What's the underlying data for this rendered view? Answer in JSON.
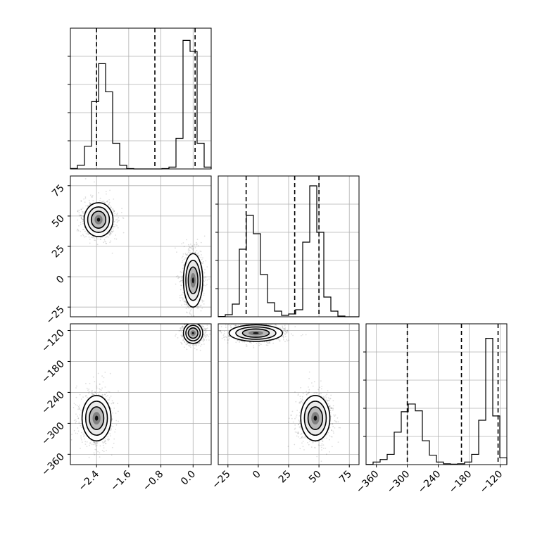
{
  "chart_data": {
    "type": "corner",
    "title": "",
    "n_params": 3,
    "params": [
      {
        "label": "",
        "range": [
          -3.05,
          0.45
        ],
        "ticks": [
          -2.4,
          -1.6,
          -0.8,
          0.0
        ],
        "tick_labels": [
          "−2.4",
          "−1.6",
          "−0.8",
          "0.0"
        ],
        "quantiles": [
          -2.4,
          -0.95,
          0.05
        ]
      },
      {
        "label": "",
        "range": [
          -33,
          83
        ],
        "ticks": [
          -25,
          0,
          25,
          50,
          75
        ],
        "tick_labels": [
          "−25",
          "0",
          "25",
          "50",
          "75"
        ],
        "quantiles": [
          -10,
          30,
          50
        ]
      },
      {
        "label": "",
        "range": [
          -380,
          -107
        ],
        "ticks": [
          -360,
          -300,
          -240,
          -180,
          -120
        ],
        "tick_labels": [
          "−360",
          "−300",
          "−240",
          "−180",
          "−120"
        ],
        "quantiles": [
          -300,
          -195,
          -124
        ]
      }
    ],
    "histograms": [
      {
        "param": 0,
        "bin_edges": [
          -3.05,
          -2.875,
          -2.7,
          -2.525,
          -2.35,
          -2.175,
          -2.0,
          -1.825,
          -1.65,
          -1.475,
          -1.3,
          -1.125,
          -0.95,
          -0.775,
          -0.6,
          -0.425,
          -0.25,
          -0.075,
          0.1,
          0.275,
          0.45
        ],
        "counts": [
          0.4,
          3.0,
          18.5,
          55.0,
          86.0,
          63.0,
          21.0,
          3.0,
          0.3,
          0,
          0,
          0,
          0,
          0.3,
          1.5,
          25.0,
          105.0,
          96.0,
          21.0,
          1.5
        ],
        "ylim": [
          0,
          115
        ]
      },
      {
        "param": 1,
        "bin_edges": [
          -33,
          -27.2,
          -21.4,
          -15.6,
          -9.8,
          -4.0,
          1.8,
          7.6,
          13.4,
          19.2,
          25.0,
          30.8,
          36.6,
          42.4,
          48.2,
          54.0,
          59.8,
          65.6,
          71.4,
          77.2,
          83.0
        ],
        "counts": [
          0.2,
          1.5,
          9.0,
          48.0,
          72.0,
          59.0,
          30.0,
          10.0,
          4.0,
          1.0,
          2.0,
          5.0,
          53.0,
          93.0,
          60.0,
          14.0,
          4.0,
          0.5,
          0,
          0
        ],
        "ylim": [
          0,
          100
        ]
      },
      {
        "param": 2,
        "bin_edges": [
          -380,
          -366.35,
          -352.7,
          -339.05,
          -325.4,
          -311.75,
          -298.1,
          -284.45,
          -270.8,
          -257.15,
          -243.5,
          -229.85,
          -216.2,
          -202.55,
          -188.9,
          -175.25,
          -161.6,
          -147.95,
          -134.3,
          -120.65,
          -107
        ],
        "counts": [
          0.2,
          3.0,
          6.0,
          12.0,
          38.0,
          62.0,
          71.0,
          63.0,
          28.0,
          11.0,
          3.0,
          1.0,
          0.5,
          1.0,
          3.0,
          12.0,
          52.0,
          148.0,
          57.0,
          8.0
        ],
        "ylim": [
          0,
          165
        ]
      }
    ],
    "joint_densities": [
      {
        "x_param": 0,
        "y_param": 1,
        "modes": [
          {
            "x": -2.35,
            "y": 47,
            "sx": 0.18,
            "sy": 7,
            "weight": 0.5
          },
          {
            "x": 0.0,
            "y": -3,
            "sx": 0.12,
            "sy": 11,
            "weight": 0.5
          }
        ]
      },
      {
        "x_param": 0,
        "y_param": 2,
        "modes": [
          {
            "x": 0.0,
            "y": -125,
            "sx": 0.12,
            "sy": 10,
            "weight": 0.5
          },
          {
            "x": -2.4,
            "y": -290,
            "sx": 0.18,
            "sy": 22,
            "weight": 0.5
          }
        ]
      },
      {
        "x_param": 1,
        "y_param": 2,
        "modes": [
          {
            "x": -2,
            "y": -125,
            "sx": 11,
            "sy": 8,
            "weight": 0.5
          },
          {
            "x": 47,
            "y": -290,
            "sx": 6,
            "sy": 22,
            "weight": 0.5
          }
        ]
      }
    ],
    "grid": true
  },
  "colors": {
    "axes": "#000000",
    "grid": "#b0b0b0",
    "hist": "#000000",
    "scatter": "#000000",
    "contour": "#000000"
  }
}
